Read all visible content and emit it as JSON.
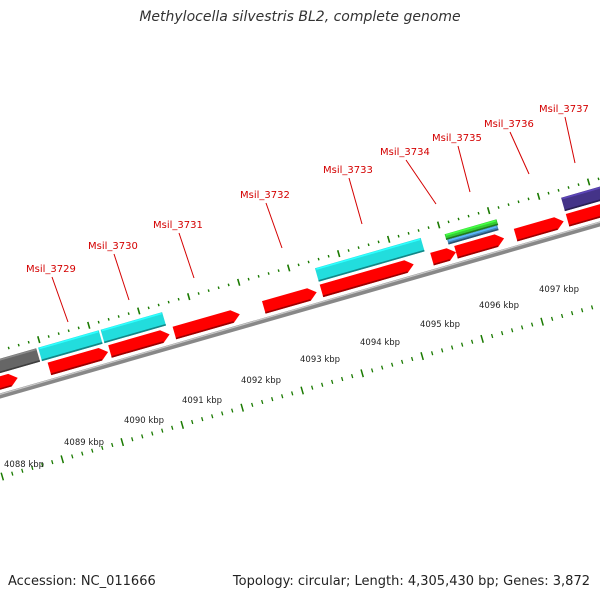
{
  "title": "Methylocella silvestris BL2, complete genome",
  "footer": {
    "accession": "Accession: NC_011666",
    "summary": "Topology: circular; Length: 4,305,430 bp; Genes: 3,872"
  },
  "colors": {
    "cds": "#ff0000",
    "backbone": "#888888",
    "tick": "#1a7a00",
    "label": "#d40000",
    "cyan_track": "#22dddd",
    "grey_track": "#666666",
    "green_track": "#33cc33",
    "blue_track": "#4488bb",
    "purple_track": "#443388"
  },
  "scale_labels": [
    "4088 kbp",
    "4089 kbp",
    "4090 kbp",
    "4091 kbp",
    "4092 kbp",
    "4093 kbp",
    "4094 kbp",
    "4095 kbp",
    "4096 kbp",
    "4097 kbp"
  ],
  "gene_labels": [
    "Msil_3729",
    "Msil_3730",
    "Msil_3731",
    "Msil_3732",
    "Msil_3733",
    "Msil_3734",
    "Msil_3735",
    "Msil_3736",
    "Msil_3737"
  ]
}
